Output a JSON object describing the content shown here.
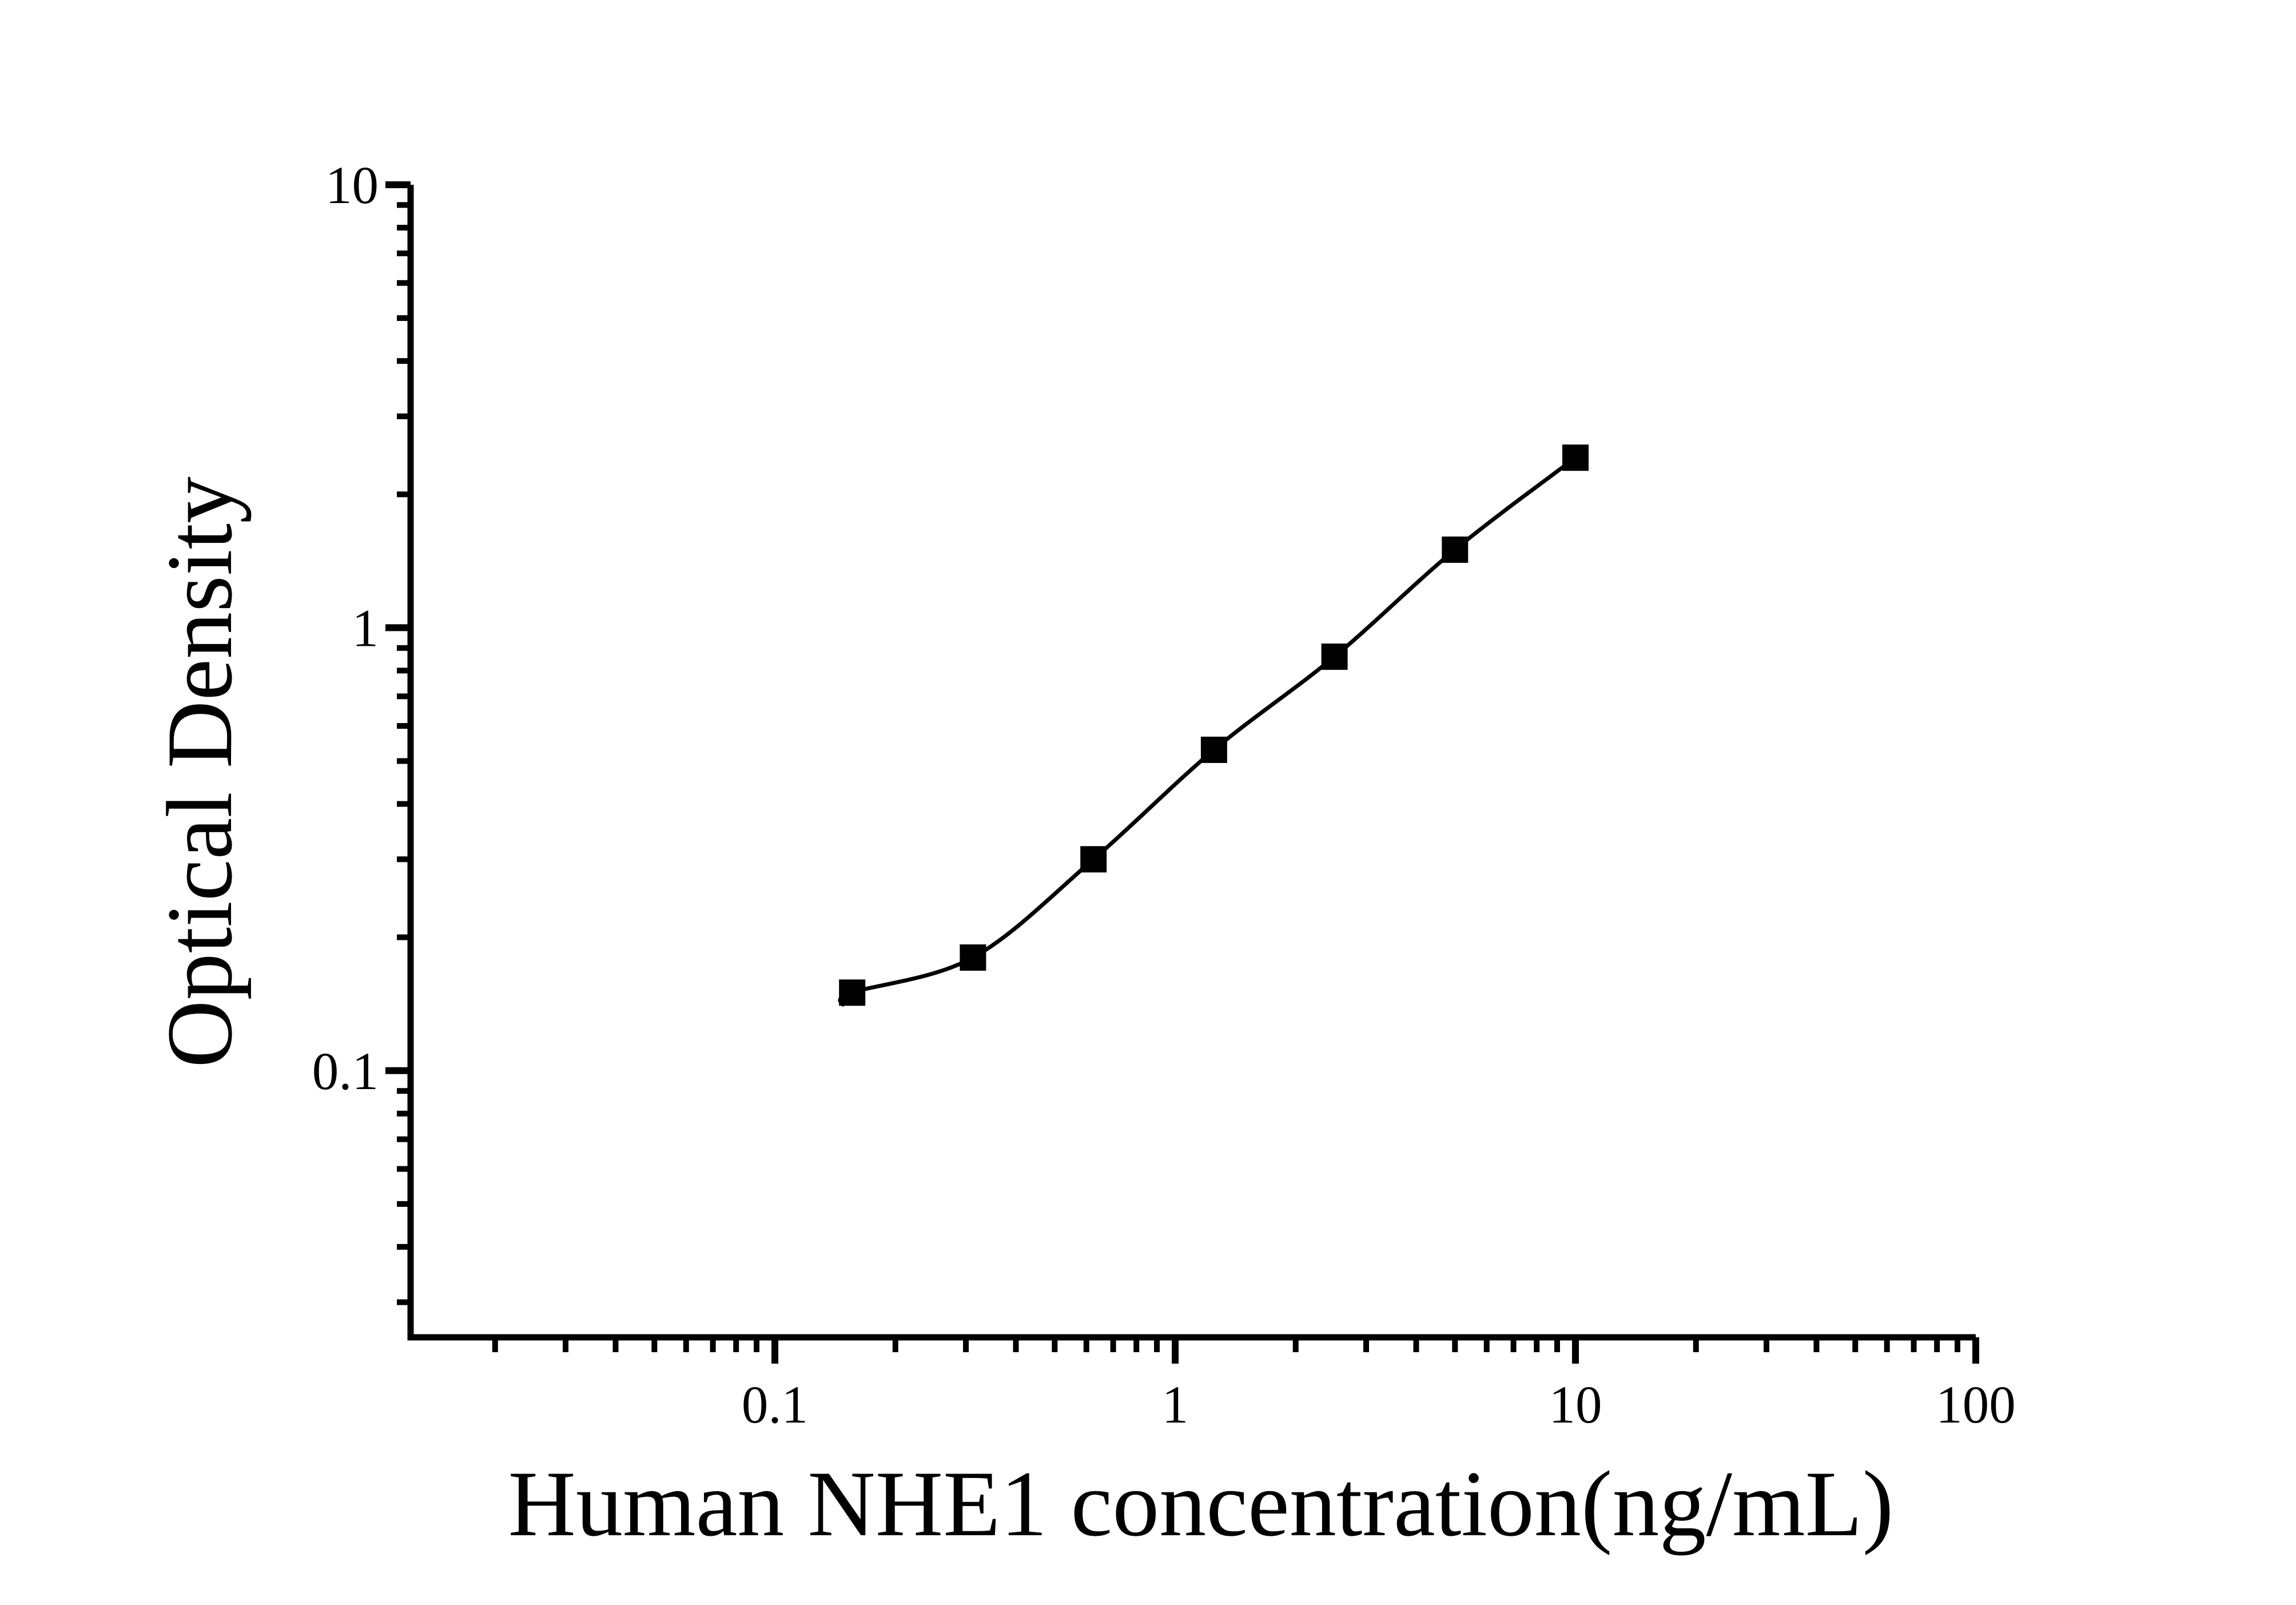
{
  "figure": {
    "background": "#ffffff",
    "ink_color": "#000000"
  },
  "chart_data": {
    "type": "scatter",
    "title": "",
    "xlabel": "Human NHE1 concentration(ng/mL)",
    "ylabel": "Optical Density",
    "x_scale": "log",
    "y_scale": "log",
    "xlim": [
      0.0123,
      100
    ],
    "ylim": [
      0.025,
      10
    ],
    "x_tick_values": [
      0.1,
      1,
      10,
      100
    ],
    "x_tick_labels": [
      "0.1",
      "1",
      "10",
      "100"
    ],
    "y_tick_values": [
      0.1,
      1,
      10
    ],
    "y_tick_labels": [
      "0.1",
      "1",
      "10"
    ],
    "grid": "off",
    "legend": "none",
    "marker": "filled-square",
    "series": [
      {
        "name": "standard curve",
        "x": [
          0.156,
          0.3125,
          0.625,
          1.25,
          2.5,
          5,
          10
        ],
        "od": [
          0.15,
          0.18,
          0.3,
          0.53,
          0.86,
          1.5,
          2.42
        ],
        "fit_curve_start": {
          "x": 0.148,
          "od": 0.141
        }
      }
    ]
  }
}
